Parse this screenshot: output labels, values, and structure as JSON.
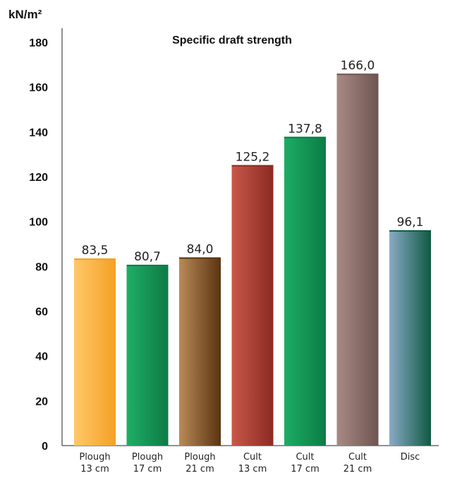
{
  "chart_data": {
    "type": "bar",
    "title": "Specific draft strength",
    "ylabel": "kN/m²",
    "xlabel": "",
    "ylim": [
      0,
      180
    ],
    "yticks": [
      "0",
      "20",
      "40",
      "60",
      "80",
      "100",
      "120",
      "140",
      "160",
      "180"
    ],
    "grid": false,
    "categories": [
      [
        "Plough",
        "13 cm"
      ],
      [
        "Plough",
        "17 cm"
      ],
      [
        "Plough",
        "21 cm"
      ],
      [
        "Cult",
        "13 cm"
      ],
      [
        "Cult",
        "17 cm"
      ],
      [
        "Cult",
        "21 cm"
      ],
      [
        "Disc"
      ]
    ],
    "values": [
      83.5,
      80.7,
      84.0,
      125.2,
      137.8,
      166.0,
      96.1
    ],
    "value_labels": [
      "83,5",
      "80,7",
      "84,0",
      "125,2",
      "137,8",
      "166,0",
      "96,1"
    ],
    "bar_colors": [
      [
        "#f4a024",
        "#ffc86a"
      ],
      [
        "#0d7a45",
        "#1fae66"
      ],
      [
        "#5a3310",
        "#b98a58"
      ],
      [
        "#8c2a22",
        "#c8584a"
      ],
      [
        "#0b7c45",
        "#1dad63"
      ],
      [
        "#6e5450",
        "#a88a85"
      ],
      [
        "#0f5a43",
        "#8aaac6"
      ]
    ]
  }
}
